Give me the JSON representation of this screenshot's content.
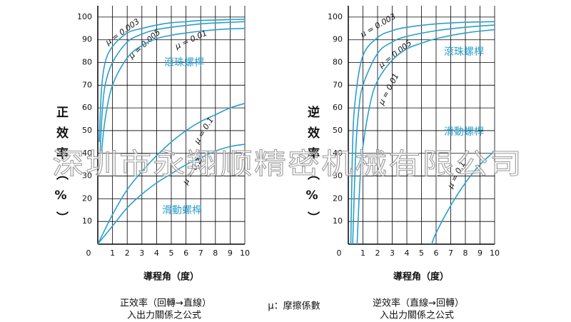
{
  "chart_data": [
    {
      "type": "line",
      "y_label": "正效率（%）",
      "x_label": "導程角（度）",
      "xlim": [
        0,
        10
      ],
      "ylim": [
        0,
        105
      ],
      "xticks": [
        0,
        1,
        2,
        3,
        4,
        5,
        6,
        7,
        8,
        9,
        10
      ],
      "yticks": [
        10,
        20,
        30,
        40,
        50,
        60,
        70,
        80,
        90,
        100
      ],
      "grid": true,
      "annotations": [
        "滾珠螺桿",
        "滑動螺桿"
      ],
      "series": [
        {
          "name": "μ = 0.003",
          "color": "#2a9fd0",
          "x": [
            0.1,
            0.25,
            0.5,
            1,
            2,
            3,
            4,
            5,
            6,
            7,
            8,
            9,
            10
          ],
          "values": [
            45,
            68,
            80,
            87,
            93,
            95,
            96.5,
            97.5,
            98,
            98.5,
            98.7,
            98.9,
            99
          ]
        },
        {
          "name": "μ = 0.005",
          "color": "#2a9fd0",
          "x": [
            0.15,
            0.3,
            0.5,
            1,
            2,
            3,
            4,
            5,
            6,
            7,
            8,
            9,
            10
          ],
          "values": [
            40,
            58,
            70,
            80,
            89,
            92.5,
            94.5,
            95.5,
            96.3,
            97,
            97.4,
            97.7,
            98
          ]
        },
        {
          "name": "μ = 0.01",
          "color": "#2a9fd0",
          "x": [
            0.25,
            0.5,
            1,
            2,
            3,
            4,
            5,
            6,
            7,
            8,
            9,
            10
          ],
          "values": [
            40,
            55,
            70,
            82,
            87.5,
            90.5,
            92,
            93,
            93.8,
            94.4,
            94.8,
            95
          ]
        },
        {
          "name": "μ = 0.1",
          "color": "#2a9fd0",
          "x": [
            0,
            1,
            2,
            3,
            4,
            5,
            6,
            7,
            8,
            9,
            10
          ],
          "values": [
            0,
            13,
            24,
            32,
            39,
            45,
            50,
            54,
            57,
            60,
            62
          ]
        },
        {
          "name": "μ = 0.2",
          "color": "#2a9fd0",
          "x": [
            0,
            1,
            2,
            3,
            4,
            5,
            6,
            7,
            8,
            9,
            10
          ],
          "values": [
            0,
            8,
            16,
            22,
            27,
            31,
            35,
            38,
            41,
            43,
            44
          ]
        }
      ]
    },
    {
      "type": "line",
      "y_label": "逆效率（%）",
      "x_label": "導程角（度）",
      "xlim": [
        0,
        10
      ],
      "ylim": [
        0,
        105
      ],
      "xticks": [
        0,
        1,
        2,
        3,
        4,
        5,
        6,
        7,
        8,
        9,
        10
      ],
      "yticks": [
        10,
        20,
        30,
        40,
        50,
        60,
        70,
        80,
        90,
        100
      ],
      "grid": true,
      "annotations": [
        "滾珠螺桿",
        "滑動螺桿"
      ],
      "series": [
        {
          "name": "μ = 0.003",
          "color": "#2a9fd0",
          "x": [
            0.17,
            0.3,
            0.5,
            1,
            2,
            3,
            4,
            6,
            8,
            10
          ],
          "values": [
            0,
            45,
            65,
            83,
            91,
            94,
            95.5,
            97,
            97.7,
            98
          ]
        },
        {
          "name": "μ = 0.005",
          "color": "#2a9fd0",
          "x": [
            0.3,
            0.5,
            0.7,
            1,
            2,
            3,
            4,
            6,
            8,
            10
          ],
          "values": [
            0,
            40,
            58,
            70,
            84,
            89,
            91.5,
            94,
            95.5,
            96.5
          ]
        },
        {
          "name": "μ = 0.01",
          "color": "#2a9fd0",
          "x": [
            0.6,
            0.8,
            1,
            1.5,
            2,
            3,
            4,
            5,
            6,
            8,
            10
          ],
          "values": [
            0,
            28,
            43,
            62,
            72,
            81,
            86,
            88.5,
            90.5,
            93,
            94.5
          ]
        },
        {
          "name": "μ = 0.1",
          "color": "#2a9fd0",
          "x": [
            5.7,
            6,
            7,
            8,
            9,
            10
          ],
          "values": [
            0,
            5,
            17,
            27,
            35,
            41
          ]
        }
      ]
    }
  ],
  "notes": [
    [
      "正效率（回轉→直線）",
      "入出力關係之公式"
    ],
    [
      "μ：摩擦係數"
    ],
    [
      "逆效率（直線→回轉）",
      "入出力關係之公式"
    ]
  ],
  "watermark": "深圳市永翔顺精密机械有限公司"
}
